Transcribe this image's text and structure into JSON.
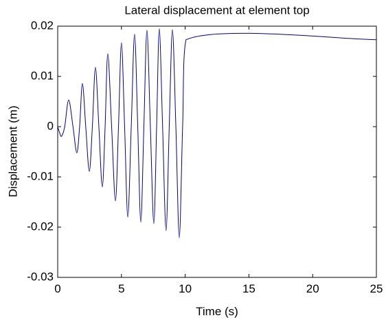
{
  "chart_data": {
    "type": "line",
    "title": "Lateral displacement at element top",
    "xlabel": "Time (s)",
    "ylabel": "Displacement (m)",
    "x": [
      0,
      0.15,
      0.3,
      0.55,
      0.86,
      1.2,
      1.5,
      1.72,
      1.94,
      2.2,
      2.48,
      2.72,
      2.96,
      3.23,
      3.5,
      3.72,
      3.93,
      4.23,
      4.53,
      4.77,
      5.0,
      5.25,
      5.5,
      5.77,
      6.03,
      6.28,
      6.52,
      6.76,
      7.0,
      7.27,
      7.54,
      7.76,
      7.97,
      8.23,
      8.5,
      8.75,
      9.0,
      9.27,
      9.54,
      9.8,
      10.07,
      25
    ],
    "series": [
      {
        "color": "#00008b",
        "values": [
          0,
          -0.0012,
          -0.0019,
          0,
          0.0053,
          0,
          -0.0052,
          0,
          0.0086,
          0,
          -0.0089,
          0,
          0.0118,
          0,
          -0.012,
          0,
          0.0145,
          0,
          -0.0148,
          0,
          0.0167,
          0,
          -0.018,
          0,
          0.0184,
          0,
          -0.019,
          0,
          0.0192,
          0,
          -0.0193,
          0,
          0.0195,
          0,
          -0.0207,
          0,
          0.0193,
          0,
          -0.0221,
          0,
          0.0173,
          0.0173
        ]
      }
    ],
    "xlim": [
      0,
      25
    ],
    "xticks": [
      0,
      5,
      10,
      15,
      20,
      25
    ],
    "ylim": [
      -0.03,
      0.02
    ],
    "yticks": [
      -0.03,
      -0.02,
      -0.01,
      0,
      0.01,
      0.02
    ],
    "grid": false
  }
}
